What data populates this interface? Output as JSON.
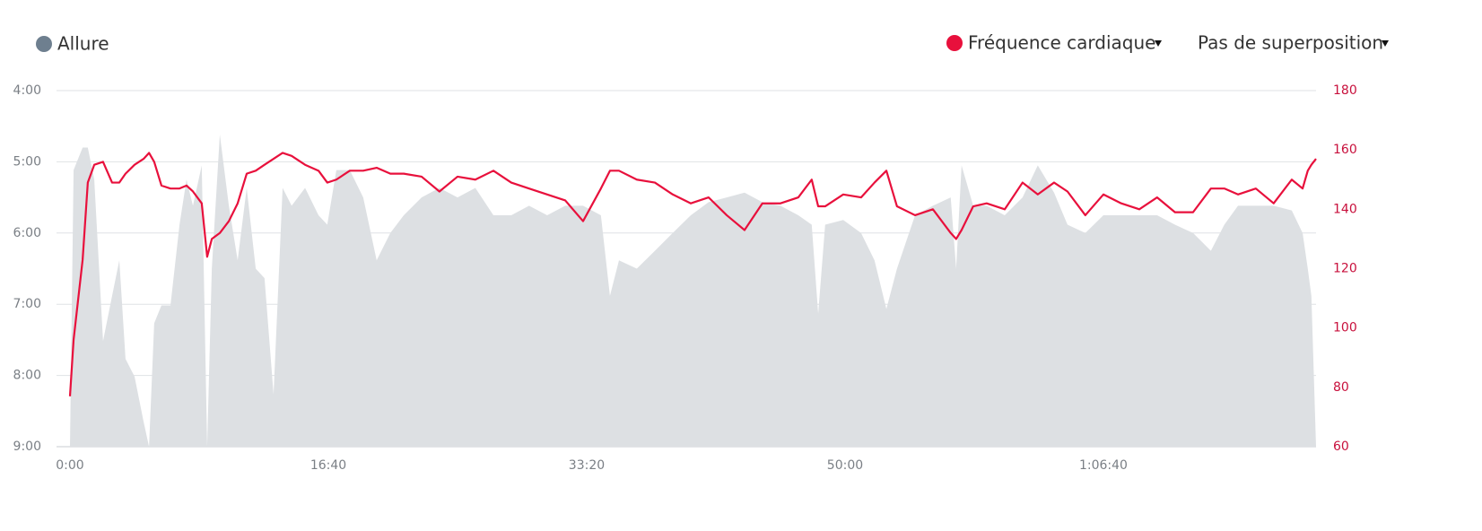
{
  "chart_data": {
    "type": "line",
    "overlay_selector": "Pas de superposition",
    "x": [
      0,
      14,
      49,
      69,
      94,
      128,
      163,
      191,
      215,
      250,
      285,
      306,
      326,
      354,
      389,
      424,
      451,
      476,
      510,
      531,
      549,
      580,
      615,
      649,
      684,
      719,
      753,
      788,
      823,
      858,
      910,
      962,
      996,
      1031,
      1083,
      1135,
      1187,
      1240,
      1292,
      1361,
      1430,
      1500,
      1569,
      1639,
      1708,
      1777,
      1847,
      1917,
      1986,
      2055,
      2090,
      2125,
      2194,
      2264,
      2333,
      2403,
      2472,
      2542,
      2611,
      2680,
      2750,
      2819,
      2871,
      2896,
      2923,
      2993,
      3062,
      3114,
      3160,
      3201,
      3271,
      3340,
      3409,
      3430,
      3451,
      3496,
      3548,
      3618,
      3687,
      3746,
      3809,
      3861,
      3930,
      4000,
      4069,
      4139,
      4208,
      4277,
      4347,
      4416,
      4468,
      4521,
      4590,
      4659,
      4729,
      4771,
      4791,
      4805,
      4823
    ],
    "series": [
      {
        "name": "Allure",
        "type": "area",
        "axis": "y",
        "color": "#dde0e3",
        "legend_color": "#6e7f8f",
        "values": [
          540,
          307,
          288,
          288,
          315,
          451,
          413,
          383,
          466,
          481,
          519,
          540,
          436,
          421,
          421,
          353,
          315,
          337,
          303,
          540,
          390,
          277,
          337,
          383,
          322,
          390,
          398,
          496,
          322,
          337,
          322,
          345,
          353,
          307,
          307,
          330,
          383,
          360,
          345,
          330,
          322,
          330,
          322,
          345,
          345,
          337,
          345,
          337,
          337,
          345,
          413,
          383,
          390,
          375,
          360,
          345,
          334,
          330,
          326,
          334,
          337,
          345,
          353,
          428,
          353,
          349,
          360,
          383,
          424,
          390,
          345,
          337,
          330,
          390,
          303,
          337,
          337,
          345,
          330,
          303,
          326,
          353,
          360,
          345,
          345,
          345,
          345,
          353,
          360,
          375,
          353,
          337,
          337,
          337,
          341,
          360,
          390,
          413,
          540
        ]
      },
      {
        "name": "Fréquence cardiaque",
        "type": "line",
        "axis": "y2",
        "color": "#e8103c",
        "legend_color": "#e8103c",
        "values": [
          77,
          96,
          123,
          149,
          155,
          156,
          149,
          149,
          152,
          155,
          157,
          159,
          156,
          148,
          147,
          147,
          148,
          146,
          142,
          124,
          130,
          132,
          136,
          142,
          152,
          153,
          155,
          157,
          159,
          158,
          155,
          153,
          149,
          150,
          153,
          153,
          154,
          152,
          152,
          151,
          146,
          151,
          150,
          153,
          149,
          147,
          145,
          143,
          136,
          147,
          153,
          153,
          150,
          149,
          145,
          142,
          144,
          138,
          133,
          142,
          142,
          144,
          150,
          141,
          141,
          145,
          144,
          149,
          153,
          141,
          138,
          140,
          132,
          130,
          133,
          141,
          142,
          140,
          149,
          145,
          149,
          146,
          138,
          145,
          142,
          140,
          144,
          139,
          139,
          147,
          147,
          145,
          147,
          142,
          150,
          147,
          153,
          155,
          157
        ]
      }
    ],
    "xlim": [
      0,
      4823
    ],
    "xticks": [
      {
        "value": 0,
        "label": "0:00"
      },
      {
        "value": 1000,
        "label": "16:40"
      },
      {
        "value": 2000,
        "label": "33:20"
      },
      {
        "value": 3000,
        "label": "50:00"
      },
      {
        "value": 4000,
        "label": "1:06:40"
      }
    ],
    "ylim": [
      240,
      540
    ],
    "y_inverted": true,
    "yticks": [
      {
        "value": 240,
        "label": "4:00"
      },
      {
        "value": 300,
        "label": "5:00"
      },
      {
        "value": 360,
        "label": "6:00"
      },
      {
        "value": 420,
        "label": "7:00"
      },
      {
        "value": 480,
        "label": "8:00"
      },
      {
        "value": 540,
        "label": "9:00"
      }
    ],
    "y2lim": [
      60,
      180
    ],
    "y2ticks": [
      60,
      80,
      100,
      120,
      140,
      160,
      180
    ],
    "grid": true
  }
}
